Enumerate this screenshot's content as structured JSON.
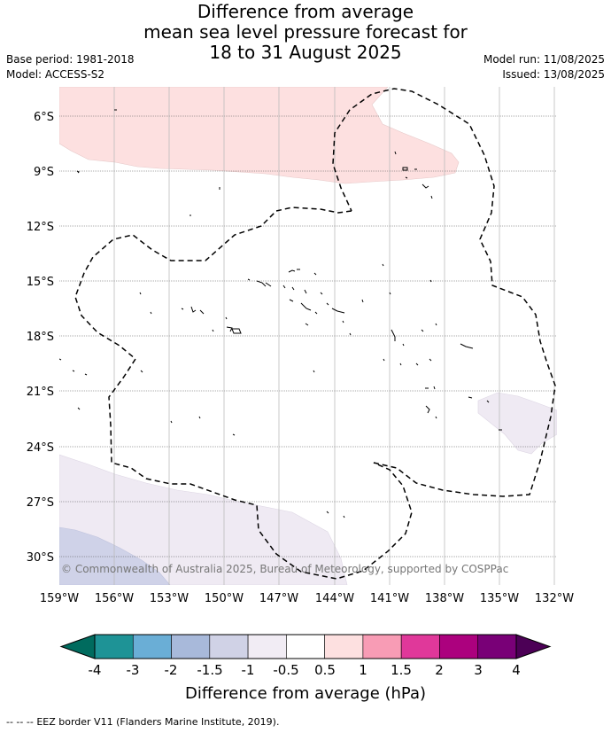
{
  "title": {
    "line1": "Difference from average",
    "line2": "mean sea level pressure forecast for",
    "line3": "18 to 31 August 2025"
  },
  "meta": {
    "base_period": "Base period: 1981-2018",
    "model": "Model: ACCESS-S2",
    "model_run": "Model run: 11/08/2025",
    "issued": "Issued: 13/08/2025"
  },
  "map": {
    "lat_labels": [
      "6°S",
      "9°S",
      "12°S",
      "15°S",
      "18°S",
      "21°S",
      "24°S",
      "27°S",
      "30°S"
    ],
    "lon_labels": [
      "159°W",
      "156°W",
      "153°W",
      "150°W",
      "147°W",
      "144°W",
      "141°W",
      "138°W",
      "135°W",
      "132°W"
    ],
    "copyright": "© Commonwealth of Australia 2025, Bureau of Meteorology, supported by COSPPac",
    "colors": {
      "positive_anomaly": "#fde0e0",
      "negative_light": "#efeaf3",
      "negative_medium": "#cfd2e8",
      "eez_border": "#000000"
    }
  },
  "colorbar": {
    "title": "Difference from average (hPa)",
    "tick_labels": [
      "-4",
      "-3",
      "-2",
      "-1.5",
      "-1",
      "-0.5",
      "0.5",
      "1",
      "1.5",
      "2",
      "3",
      "4"
    ],
    "colors": [
      "#006b5e",
      "#1e9396",
      "#6aaed6",
      "#a8b9da",
      "#d0d2e6",
      "#f1ecf4",
      "#ffffff",
      "#fde0e0",
      "#f89cb5",
      "#e0389a",
      "#ac017e",
      "#790077",
      "#4c0056"
    ]
  },
  "footer": {
    "legend_symbol": "-- -- --",
    "legend_text": "EEZ border V11 (Flanders Marine Institute, 2019)."
  }
}
